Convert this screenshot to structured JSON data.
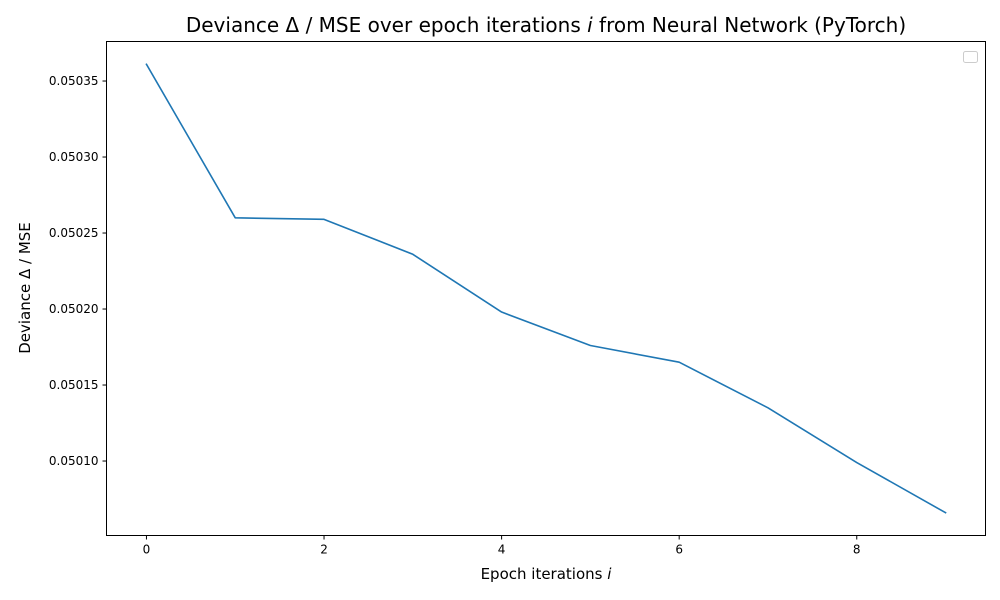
{
  "chart_data": {
    "type": "line",
    "title": "Deviance Δ / MSE over epoch iterations ",
    "title_italic": "i",
    "title_suffix": " from Neural Network (PyTorch)",
    "xlabel": "Epoch iterations ",
    "xlabel_italic": "i",
    "ylabel": "Deviance Δ / MSE",
    "x": [
      0,
      1,
      2,
      3,
      4,
      5,
      6,
      7,
      8,
      9
    ],
    "series": [
      {
        "values": [
          0.050361,
          0.05026,
          0.050259,
          0.050236,
          0.050198,
          0.050176,
          0.050165,
          0.050135,
          0.050099,
          0.050066
        ],
        "color": "#1f77b4"
      }
    ],
    "x_ticks": [
      0,
      2,
      4,
      6,
      8
    ],
    "x_tick_labels": [
      "0",
      "2",
      "4",
      "6",
      "8"
    ],
    "y_ticks": [
      0.0501,
      0.05015,
      0.0502,
      0.05025,
      0.0503,
      0.05035
    ],
    "y_tick_labels": [
      "0.05010",
      "0.05015",
      "0.05020",
      "0.05025",
      "0.05030",
      "0.05035"
    ],
    "xlim": [
      -0.45,
      9.45
    ],
    "ylim": [
      0.050051,
      0.050376
    ],
    "grid": false,
    "legend": "top-right",
    "legend_entries": []
  }
}
